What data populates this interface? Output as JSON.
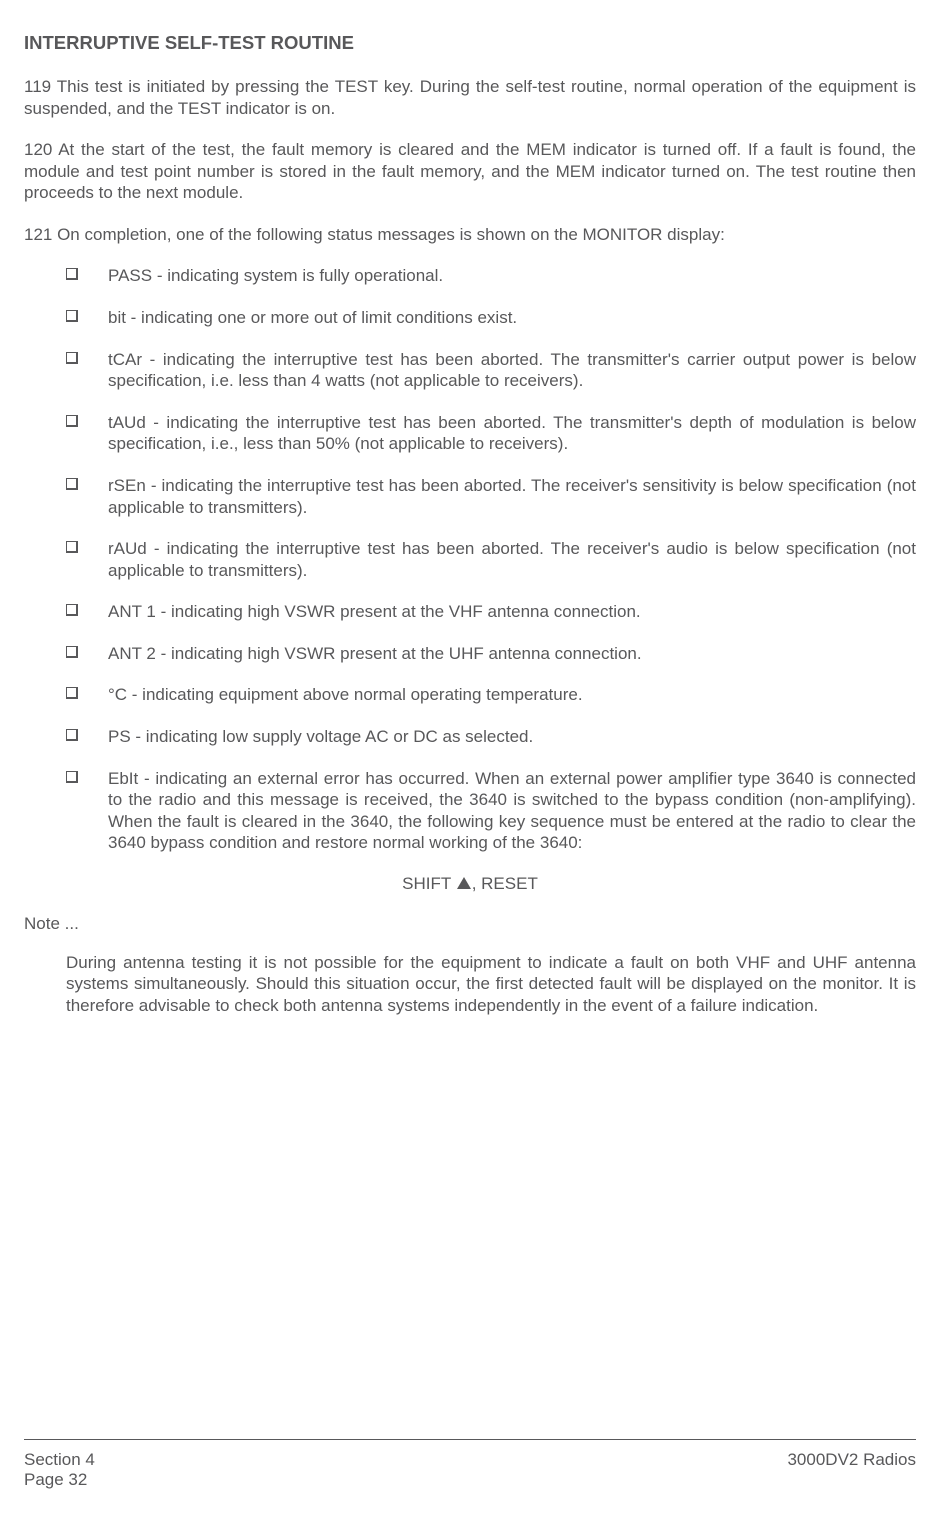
{
  "heading": "INTERRUPTIVE SELF-TEST ROUTINE",
  "para119": "119  This test is initiated by pressing the TEST key.  During the self-test routine, normal operation of the equipment is suspended, and the TEST indicator is on.",
  "para120": "120  At the start of the test, the fault memory is cleared and the MEM indicator is turned off.  If a fault is found, the module and test point number is stored in the fault memory, and the MEM indicator turned on. The test routine then proceeds to the next module.",
  "para121": "121  On completion, one of the following status messages is shown on the MONITOR display:",
  "bullets": {
    "b1": "PASS - indicating system is fully operational.",
    "b2": "bit - indicating one or more out of limit conditions exist.",
    "b3": "tCAr - indicating the interruptive test has been aborted.  The transmitter's carrier output power is below specification, i.e. less than 4 watts (not applicable to receivers).",
    "b4": "tAUd - indicating the interruptive test has been aborted.  The transmitter's depth of modulation is below specification, i.e., less than 50% (not applicable to receivers).",
    "b5": "rSEn - indicating the interruptive test has been aborted.  The receiver's sensitivity is below specification (not applicable to transmitters).",
    "b6": "rAUd - indicating the interruptive test has been aborted.  The receiver's audio is below specification (not applicable to transmitters).",
    "b7": "ANT 1 - indicating high VSWR present at the VHF antenna connection.",
    "b8": "ANT 2 - indicating high VSWR present at the UHF antenna connection.",
    "b9": "°C - indicating equipment above normal operating temperature.",
    "b10": "PS - indicating low supply voltage AC or DC as selected.",
    "b11": "EbIt - indicating an external error has occurred. When an external power amplifier type 3640 is connected to the radio and this message is received, the 3640 is switched to the bypass condition (non-amplifying). When the fault is cleared in the 3640, the following key sequence must be entered at the radio to clear the 3640 bypass condition and restore normal working of the 3640:"
  },
  "keyseq_before": "SHIFT ",
  "keyseq_after": ", RESET",
  "note_label": "Note ...",
  "note_body": "During antenna testing it is not possible for the equipment to indicate a fault on both VHF and UHF antenna systems simultaneously.  Should this situation occur, the first detected fault will be displayed on the monitor.  It is therefore advisable to check both antenna systems independently in the event of a failure indication.",
  "footer": {
    "section": "Section 4",
    "page": "Page 32",
    "right": "3000DV2 Radios"
  }
}
